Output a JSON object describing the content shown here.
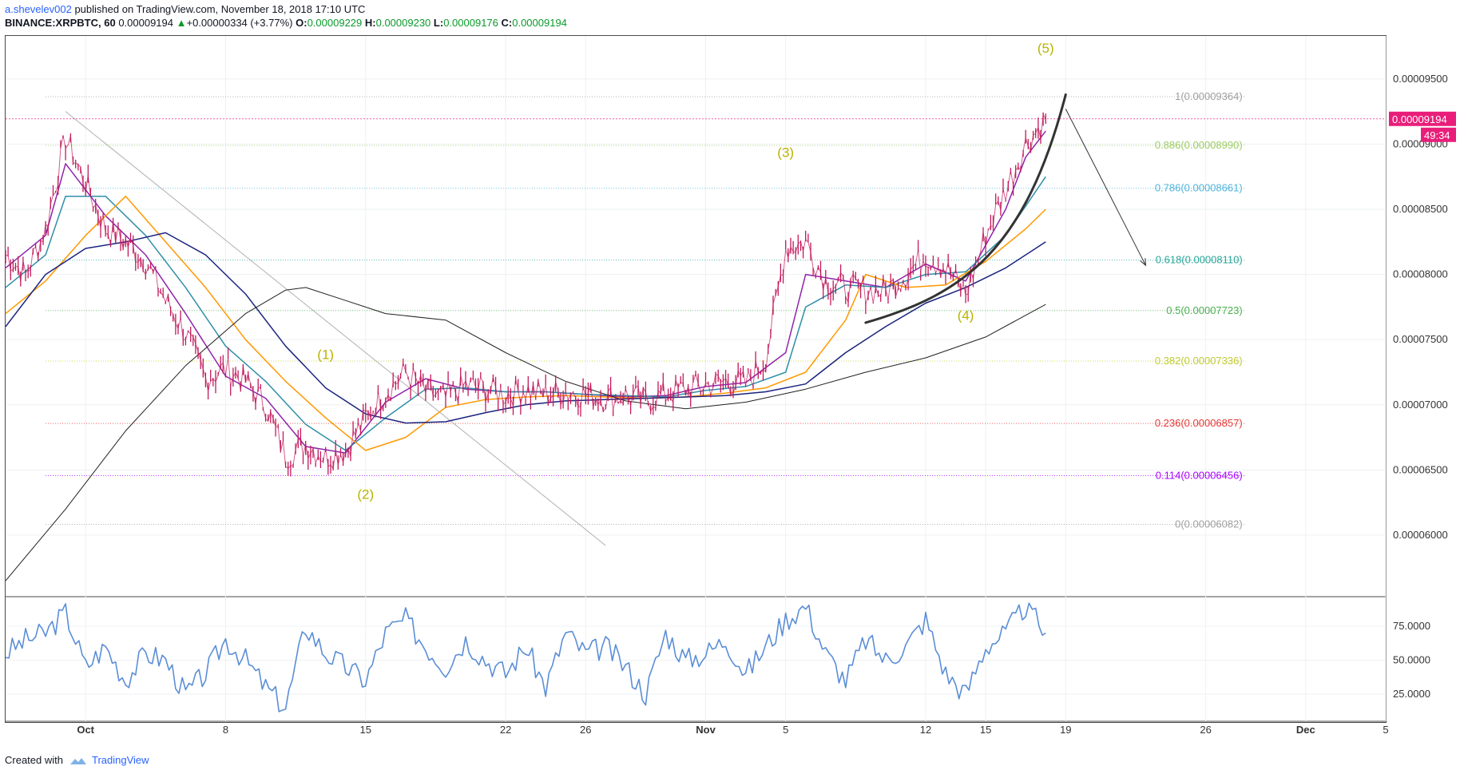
{
  "header": {
    "user": "a.shevelev002",
    "published": " published on TradingView.com, November 18, 2018 17:10 UTC",
    "symbol": "BINANCE:XRPBTC, 60",
    "last": "0.00009194",
    "change": "+0.00000334 (+3.77%)",
    "o_label": "O:",
    "o": "0.00009229",
    "h_label": "H:",
    "h": "0.00009230",
    "l_label": "L:",
    "l": "0.00009176",
    "c_label": "C:",
    "c": "0.00009194"
  },
  "footer": {
    "created_with": "Created with",
    "brand": "TradingView"
  },
  "colors": {
    "up": "#0a9a2b",
    "candle": "#c2185b",
    "ma_fast": "#8e24aa",
    "ma_teal": "#2e8fa8",
    "ma_orange": "#ff9800",
    "ma_navy": "#1a237e",
    "ma_slow": "#212121",
    "rsi": "#5b8ed6",
    "price_tag": "#e91e7a",
    "wave_label": "#b8b200"
  },
  "chart_data": {
    "type": "line",
    "title": "BINANCE:XRPBTC, 60",
    "x_ticks": [
      {
        "label": "Oct",
        "bold": true,
        "date": "2018-10-01"
      },
      {
        "label": "8",
        "date": "2018-10-08"
      },
      {
        "label": "15",
        "date": "2018-10-15"
      },
      {
        "label": "22",
        "date": "2018-10-22"
      },
      {
        "label": "26",
        "date": "2018-10-26"
      },
      {
        "label": "Nov",
        "bold": true,
        "date": "2018-11-01"
      },
      {
        "label": "5",
        "date": "2018-11-05"
      },
      {
        "label": "12",
        "date": "2018-11-12"
      },
      {
        "label": "15",
        "date": "2018-11-15"
      },
      {
        "label": "19",
        "date": "2018-11-19"
      },
      {
        "label": "26",
        "date": "2018-11-26"
      },
      {
        "label": "Dec",
        "bold": true,
        "date": "2018-12-01"
      },
      {
        "label": "5",
        "date": "2018-12-05"
      }
    ],
    "xlim": [
      "2018-09-27",
      "2018-12-05"
    ],
    "y_ticks": [
      "0.00009500",
      "0.00009000",
      "0.00008500",
      "0.00008000",
      "0.00007500",
      "0.00007000",
      "0.00006500",
      "0.00006000"
    ],
    "ylim": [
      5.54e-05,
      9.83e-05
    ],
    "last_price_label": "0.00009194",
    "last_price": 9.194e-05,
    "countdown": "49:34",
    "series": [
      {
        "name": "XRPBTC",
        "kind": "price",
        "x": [
          "2018-09-27",
          "2018-09-28",
          "2018-09-29",
          "2018-09-30",
          "2018-10-01",
          "2018-10-02",
          "2018-10-03",
          "2018-10-04",
          "2018-10-05",
          "2018-10-06",
          "2018-10-07",
          "2018-10-08",
          "2018-10-09",
          "2018-10-10",
          "2018-10-11",
          "2018-10-12",
          "2018-10-13",
          "2018-10-14",
          "2018-10-15",
          "2018-10-16",
          "2018-10-17",
          "2018-10-18",
          "2018-10-19",
          "2018-10-20",
          "2018-10-21",
          "2018-10-22",
          "2018-10-23",
          "2018-10-24",
          "2018-10-25",
          "2018-10-26",
          "2018-10-27",
          "2018-10-28",
          "2018-10-29",
          "2018-10-30",
          "2018-10-31",
          "2018-11-01",
          "2018-11-02",
          "2018-11-03",
          "2018-11-04",
          "2018-11-05",
          "2018-11-06",
          "2018-11-07",
          "2018-11-08",
          "2018-11-09",
          "2018-11-10",
          "2018-11-11",
          "2018-11-12",
          "2018-11-13",
          "2018-11-14",
          "2018-11-15",
          "2018-11-16",
          "2018-11-17",
          "2018-11-18"
        ],
        "values": [
          8.15e-05,
          8e-05,
          8.35e-05,
          9.05e-05,
          8.7e-05,
          8.35e-05,
          8.25e-05,
          8.1e-05,
          7.8e-05,
          7.55e-05,
          7.2e-05,
          7.28e-05,
          7.18e-05,
          7e-05,
          6.6e-05,
          6.7e-05,
          6.6e-05,
          6.65e-05,
          6.9e-05,
          7.1e-05,
          7.25e-05,
          7.1e-05,
          7.05e-05,
          7.15e-05,
          7.12e-05,
          7.08e-05,
          7.12e-05,
          7.08e-05,
          7.1e-05,
          7.08e-05,
          7.05e-05,
          7.07e-05,
          7.03e-05,
          7.08e-05,
          7.12e-05,
          7.15e-05,
          7.18e-05,
          7.16e-05,
          7.35e-05,
          8.2e-05,
          8.25e-05,
          7.95e-05,
          7.9e-05,
          7.88e-05,
          7.87e-05,
          8e-05,
          8.15e-05,
          8.05e-05,
          7.85e-05,
          8.3e-05,
          8.65e-05,
          9e-05,
          9.19e-05
        ]
      },
      {
        "name": "MA fast",
        "kind": "ma_fast",
        "x": [
          "2018-09-27",
          "2018-09-29",
          "2018-09-30",
          "2018-10-02",
          "2018-10-04",
          "2018-10-06",
          "2018-10-08",
          "2018-10-10",
          "2018-10-12",
          "2018-10-14",
          "2018-10-16",
          "2018-10-18",
          "2018-10-20",
          "2018-10-22",
          "2018-10-24",
          "2018-10-26",
          "2018-10-28",
          "2018-10-30",
          "2018-11-01",
          "2018-11-03",
          "2018-11-05",
          "2018-11-06",
          "2018-11-08",
          "2018-11-10",
          "2018-11-12",
          "2018-11-14",
          "2018-11-16",
          "2018-11-17",
          "2018-11-18"
        ],
        "values": [
          8.05e-05,
          8.3e-05,
          8.85e-05,
          8.45e-05,
          8.15e-05,
          7.7e-05,
          7.22e-05,
          7.05e-05,
          6.68e-05,
          6.63e-05,
          7.02e-05,
          7.2e-05,
          7.12e-05,
          7.1e-05,
          7.1e-05,
          7.08e-05,
          7.06e-05,
          7.07e-05,
          7.14e-05,
          7.17e-05,
          7.4e-05,
          8e-05,
          7.95e-05,
          7.9e-05,
          8.08e-05,
          7.95e-05,
          8.5e-05,
          8.9e-05,
          9.1e-05
        ]
      },
      {
        "name": "MA teal",
        "kind": "ma_teal",
        "x": [
          "2018-09-27",
          "2018-09-29",
          "2018-09-30",
          "2018-10-02",
          "2018-10-04",
          "2018-10-06",
          "2018-10-08",
          "2018-10-10",
          "2018-10-12",
          "2018-10-14",
          "2018-10-16",
          "2018-10-18",
          "2018-10-20",
          "2018-10-22",
          "2018-10-24",
          "2018-10-26",
          "2018-10-28",
          "2018-10-30",
          "2018-11-01",
          "2018-11-03",
          "2018-11-05",
          "2018-11-06",
          "2018-11-08",
          "2018-11-10",
          "2018-11-12",
          "2018-11-14",
          "2018-11-16",
          "2018-11-18"
        ],
        "values": [
          7.9e-05,
          8.15e-05,
          8.6e-05,
          8.6e-05,
          8.3e-05,
          7.9e-05,
          7.45e-05,
          7.18e-05,
          6.85e-05,
          6.65e-05,
          6.9e-05,
          7.12e-05,
          7.13e-05,
          7.1e-05,
          7.1e-05,
          7.08e-05,
          7.07e-05,
          7.06e-05,
          7.11e-05,
          7.14e-05,
          7.25e-05,
          7.75e-05,
          7.92e-05,
          7.9e-05,
          8e-05,
          8.02e-05,
          8.3e-05,
          8.75e-05
        ]
      },
      {
        "name": "MA orange",
        "kind": "ma_orange",
        "x": [
          "2018-09-27",
          "2018-09-29",
          "2018-10-01",
          "2018-10-03",
          "2018-10-05",
          "2018-10-07",
          "2018-10-09",
          "2018-10-11",
          "2018-10-13",
          "2018-10-15",
          "2018-10-17",
          "2018-10-19",
          "2018-10-21",
          "2018-10-23",
          "2018-10-25",
          "2018-10-27",
          "2018-10-29",
          "2018-10-31",
          "2018-11-02",
          "2018-11-04",
          "2018-11-06",
          "2018-11-08",
          "2018-11-09",
          "2018-11-11",
          "2018-11-13",
          "2018-11-15",
          "2018-11-17",
          "2018-11-18"
        ],
        "values": [
          7.7e-05,
          7.95e-05,
          8.3e-05,
          8.6e-05,
          8.25e-05,
          7.9e-05,
          7.5e-05,
          7.18e-05,
          6.9e-05,
          6.65e-05,
          6.75e-05,
          6.98e-05,
          7.04e-05,
          7.06e-05,
          7.07e-05,
          7.06e-05,
          7.05e-05,
          7.06e-05,
          7.09e-05,
          7.13e-05,
          7.25e-05,
          7.65e-05,
          8e-05,
          7.9e-05,
          7.92e-05,
          8.1e-05,
          8.35e-05,
          8.5e-05
        ]
      },
      {
        "name": "MA navy",
        "kind": "ma_navy",
        "x": [
          "2018-09-27",
          "2018-09-29",
          "2018-10-01",
          "2018-10-03",
          "2018-10-05",
          "2018-10-07",
          "2018-10-09",
          "2018-10-11",
          "2018-10-13",
          "2018-10-15",
          "2018-10-17",
          "2018-10-19",
          "2018-10-21",
          "2018-10-23",
          "2018-10-25",
          "2018-10-27",
          "2018-10-29",
          "2018-10-31",
          "2018-11-02",
          "2018-11-04",
          "2018-11-06",
          "2018-11-08",
          "2018-11-10",
          "2018-11-12",
          "2018-11-14",
          "2018-11-16",
          "2018-11-18"
        ],
        "values": [
          7.6e-05,
          8e-05,
          8.2e-05,
          8.25e-05,
          8.32e-05,
          8.15e-05,
          7.85e-05,
          7.45e-05,
          7.13e-05,
          6.93e-05,
          6.86e-05,
          6.87e-05,
          6.94e-05,
          7e-05,
          7.03e-05,
          7.04e-05,
          7.05e-05,
          7.06e-05,
          7.07e-05,
          7.1e-05,
          7.16e-05,
          7.4e-05,
          7.6e-05,
          7.78e-05,
          7.9e-05,
          8.05e-05,
          8.25e-05
        ]
      },
      {
        "name": "MA slow",
        "kind": "ma_slow",
        "x": [
          "2018-09-27",
          "2018-09-30",
          "2018-10-03",
          "2018-10-06",
          "2018-10-09",
          "2018-10-11",
          "2018-10-12",
          "2018-10-14",
          "2018-10-16",
          "2018-10-19",
          "2018-10-22",
          "2018-10-25",
          "2018-10-28",
          "2018-10-31",
          "2018-11-03",
          "2018-11-06",
          "2018-11-09",
          "2018-11-12",
          "2018-11-15",
          "2018-11-18"
        ],
        "values": [
          5.65e-05,
          6.2e-05,
          6.8e-05,
          7.3e-05,
          7.7e-05,
          7.88e-05,
          7.9e-05,
          7.8e-05,
          7.7e-05,
          7.65e-05,
          7.4e-05,
          7.18e-05,
          7.03e-05,
          6.97e-05,
          7.02e-05,
          7.12e-05,
          7.25e-05,
          7.36e-05,
          7.52e-05,
          7.77e-05
        ]
      }
    ],
    "rsi": {
      "y_ticks": [
        "75.0000",
        "50.0000",
        "25.0000"
      ],
      "ylim": [
        5,
        95
      ],
      "x": [
        "2018-09-27",
        "2018-09-28",
        "2018-09-29",
        "2018-09-30",
        "2018-10-01",
        "2018-10-02",
        "2018-10-03",
        "2018-10-04",
        "2018-10-05",
        "2018-10-06",
        "2018-10-07",
        "2018-10-08",
        "2018-10-09",
        "2018-10-10",
        "2018-10-11",
        "2018-10-12",
        "2018-10-13",
        "2018-10-14",
        "2018-10-15",
        "2018-10-16",
        "2018-10-17",
        "2018-10-18",
        "2018-10-19",
        "2018-10-20",
        "2018-10-21",
        "2018-10-22",
        "2018-10-23",
        "2018-10-24",
        "2018-10-25",
        "2018-10-26",
        "2018-10-27",
        "2018-10-28",
        "2018-10-29",
        "2018-10-30",
        "2018-10-31",
        "2018-11-01",
        "2018-11-02",
        "2018-11-03",
        "2018-11-04",
        "2018-11-05",
        "2018-11-06",
        "2018-11-07",
        "2018-11-08",
        "2018-11-09",
        "2018-11-10",
        "2018-11-11",
        "2018-11-12",
        "2018-11-13",
        "2018-11-14",
        "2018-11-15",
        "2018-11-16",
        "2018-11-17",
        "2018-11-18"
      ],
      "values": [
        55,
        65,
        70,
        85,
        45,
        60,
        35,
        55,
        50,
        25,
        40,
        65,
        50,
        30,
        15,
        75,
        55,
        45,
        35,
        70,
        80,
        60,
        45,
        65,
        50,
        40,
        60,
        30,
        70,
        55,
        60,
        45,
        25,
        70,
        50,
        55,
        65,
        40,
        60,
        80,
        90,
        55,
        35,
        65,
        50,
        60,
        80,
        40,
        25,
        60,
        70,
        90,
        70
      ]
    },
    "fib_levels": [
      {
        "ratio": "1",
        "label": "1(0.00009364)",
        "value": 9.364e-05,
        "color": "#9e9e9e"
      },
      {
        "ratio": "0.886",
        "label": "0.886(0.00008990)",
        "value": 8.99e-05,
        "color": "#9ccc65"
      },
      {
        "ratio": "0.786",
        "label": "0.786(0.00008661)",
        "value": 8.661e-05,
        "color": "#4fb3d9"
      },
      {
        "ratio": "0.618",
        "label": "0.618(0.00008110)",
        "value": 8.11e-05,
        "color": "#26a69a"
      },
      {
        "ratio": "0.5",
        "label": "0.5(0.00007723)",
        "value": 7.723e-05,
        "color": "#4caf50"
      },
      {
        "ratio": "0.382",
        "label": "0.382(0.00007336)",
        "value": 7.336e-05,
        "color": "#c0ca33"
      },
      {
        "ratio": "0.236",
        "label": "0.236(0.00006857)",
        "value": 6.857e-05,
        "color": "#e53935"
      },
      {
        "ratio": "0.114",
        "label": "0.114(0.00006456)",
        "value": 6.456e-05,
        "color": "#aa00ff"
      },
      {
        "ratio": "0",
        "label": "0(0.00006082)",
        "value": 6.082e-05,
        "color": "#9e9e9e"
      }
    ],
    "fib_start": "2018-09-29",
    "fib_label_end": "2018-11-28",
    "wave_labels": [
      {
        "label": "(1)",
        "x": "2018-10-13",
        "y": 7.35e-05
      },
      {
        "label": "(2)",
        "x": "2018-10-15",
        "y": 6.28e-05
      },
      {
        "label": "(3)",
        "x": "2018-11-05",
        "y": 8.9e-05
      },
      {
        "label": "(4)",
        "x": "2018-11-14",
        "y": 7.65e-05
      },
      {
        "label": "(5)",
        "x": "2018-11-18",
        "y": 9.7e-05
      }
    ],
    "trendline": {
      "x": [
        "2018-09-30",
        "2018-10-27"
      ],
      "y": [
        9.25e-05,
        5.92e-05
      ]
    },
    "arc": {
      "x": [
        "2018-11-09",
        "2018-11-14",
        "2018-11-17",
        "2018-11-19"
      ],
      "y": [
        7.63e-05,
        7.85e-05,
        8.2e-05,
        9.38e-05
      ]
    },
    "arrow": {
      "x": [
        "2018-11-19",
        "2018-11-23"
      ],
      "y": [
        9.27e-05,
        8.07e-05
      ]
    }
  }
}
